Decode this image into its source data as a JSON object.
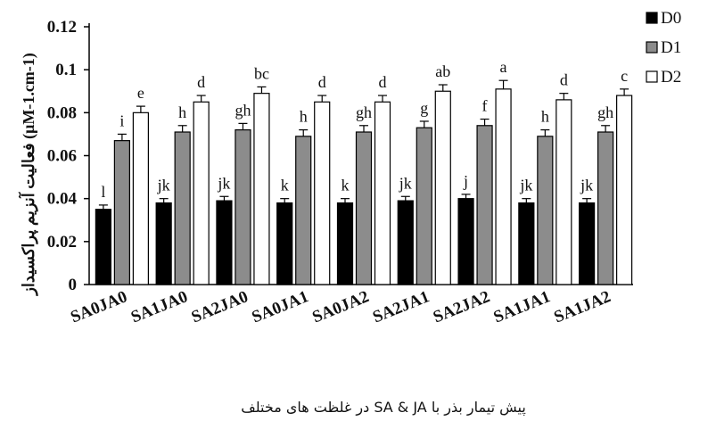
{
  "chart_data": {
    "type": "bar",
    "title": "",
    "ylabel": "فعالیت آنزیم پراکسیداز (μM-1.cm-1)",
    "xlabel": "پیش تیمار بذر با SA & JA در غلظت های مختلف",
    "ylim": [
      0,
      0.12
    ],
    "yticks": [
      "0",
      "0.02",
      "0.04",
      "0.06",
      "0.08",
      "0.1",
      "0.12"
    ],
    "categories": [
      "SA0JA0",
      "SA1JA0",
      "SA2JA0",
      "SA0JA1",
      "SA0JA2",
      "SA2JA1",
      "SA2JA2",
      "SA1JA1",
      "SA1JA2"
    ],
    "series": [
      {
        "name": "D0",
        "color": "#000000",
        "values": [
          0.035,
          0.038,
          0.039,
          0.038,
          0.038,
          0.039,
          0.04,
          0.038,
          0.038
        ],
        "errors": [
          0.002,
          0.002,
          0.002,
          0.002,
          0.002,
          0.002,
          0.002,
          0.002,
          0.002
        ],
        "letters": [
          "l",
          "jk",
          "jk",
          "k",
          "k",
          "jk",
          "j",
          "jk",
          "jk"
        ]
      },
      {
        "name": "D1",
        "color": "#8c8c8c",
        "values": [
          0.067,
          0.071,
          0.072,
          0.069,
          0.071,
          0.073,
          0.074,
          0.069,
          0.071
        ],
        "errors": [
          0.003,
          0.003,
          0.003,
          0.003,
          0.003,
          0.003,
          0.003,
          0.003,
          0.003
        ],
        "letters": [
          "i",
          "h",
          "gh",
          "h",
          "gh",
          "g",
          "f",
          "h",
          "gh"
        ]
      },
      {
        "name": "D2",
        "color": "#ffffff",
        "values": [
          0.08,
          0.085,
          0.089,
          0.085,
          0.085,
          0.09,
          0.091,
          0.086,
          0.088
        ],
        "errors": [
          0.003,
          0.003,
          0.003,
          0.003,
          0.003,
          0.003,
          0.004,
          0.003,
          0.003
        ],
        "letters": [
          "e",
          "d",
          "bc",
          "d",
          "d",
          "ab",
          "a",
          "d",
          "c"
        ]
      }
    ],
    "legend_position": "top-right",
    "grid": false
  }
}
